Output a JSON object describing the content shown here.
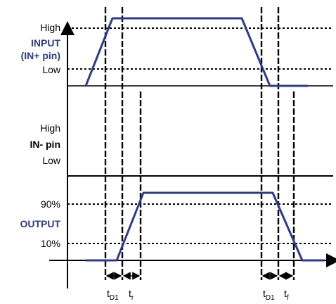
{
  "input": {
    "high": "High",
    "title_line1": "INPUT",
    "title_line2": "(IN+ pin)",
    "low": "Low"
  },
  "in_minus": {
    "high": "High",
    "title": "IN- pin",
    "low": "Low"
  },
  "output": {
    "level_90": "90%",
    "title": "OUTPUT",
    "level_10": "10%"
  },
  "timings": {
    "td1_rise": {
      "base": "t",
      "sub": "D1"
    },
    "tr": {
      "base": "t",
      "sub": "r"
    },
    "td1_fall": {
      "base": "t",
      "sub": "D1"
    },
    "tf": {
      "base": "t",
      "sub": "f"
    }
  },
  "colors": {
    "signal": "#2e3a8c",
    "label_accent": "#2e3a8c",
    "axis": "#000000"
  }
}
